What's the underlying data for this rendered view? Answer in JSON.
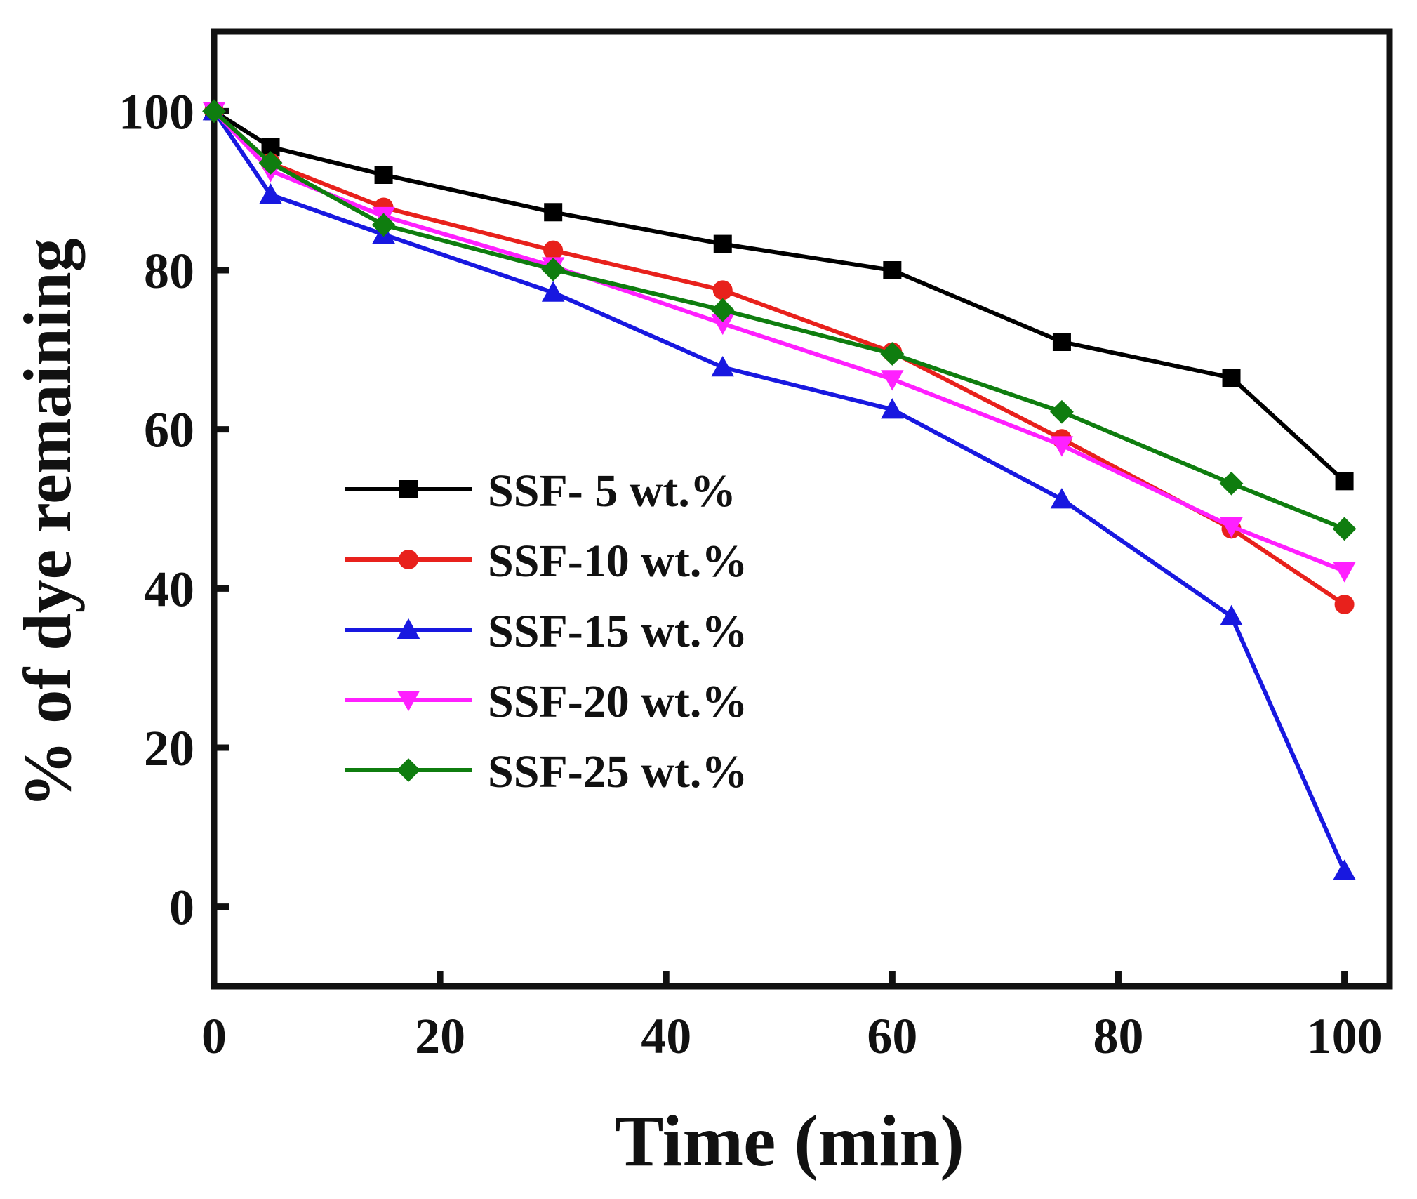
{
  "chart_data": {
    "type": "line",
    "xlabel": "Time (min)",
    "ylabel": "% of dye remaining",
    "xlim": [
      0,
      104
    ],
    "ylim": [
      -10,
      110
    ],
    "x_ticks": [
      0,
      20,
      40,
      60,
      80,
      100
    ],
    "y_ticks": [
      0,
      20,
      40,
      60,
      80,
      100
    ],
    "grid": false,
    "legend_position": "center-left",
    "x": [
      0,
      5,
      15,
      30,
      45,
      60,
      75,
      90,
      100
    ],
    "series": [
      {
        "name": "SSF-  5 wt.%",
        "color": "#000000",
        "marker": "square",
        "values": [
          100,
          95.5,
          92,
          87.3,
          83.3,
          80,
          71,
          66.5,
          53.5
        ]
      },
      {
        "name": "SSF-10 wt.%",
        "color": "#e8211c",
        "marker": "circle",
        "values": [
          100,
          93.5,
          87.9,
          82.5,
          77.5,
          69.7,
          58.8,
          47.5,
          38
        ]
      },
      {
        "name": "SSF-15 wt.%",
        "color": "#1818e0",
        "marker": "triangle-up",
        "values": [
          100,
          89.5,
          84.5,
          77.2,
          67.8,
          62.5,
          51.2,
          36.5,
          4.5
        ]
      },
      {
        "name": "SSF-20 wt.%",
        "color": "#ff20ff",
        "marker": "triangle-down",
        "values": [
          100,
          92.5,
          86.8,
          80.5,
          73.3,
          66.3,
          58,
          47.8,
          42.2
        ]
      },
      {
        "name": "SSF-25 wt.%",
        "color": "#0f7d0f",
        "marker": "diamond",
        "values": [
          100,
          93.5,
          85.7,
          80.1,
          75,
          69.5,
          62.2,
          53.2,
          47.5
        ]
      }
    ]
  }
}
